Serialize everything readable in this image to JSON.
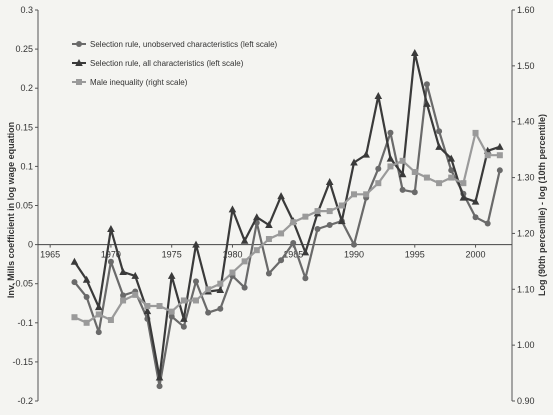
{
  "chart_data": {
    "type": "line",
    "ylabel": "Inv. Mills coefficient in log wage equation",
    "ylabel_right": "Log (90th percentile) - log (10th percentile)",
    "xticks": [
      "1965",
      "1970",
      "1975",
      "1980",
      "1985",
      "1990",
      "1995",
      "2000"
    ],
    "yticks_left": [
      "0.3",
      "0.25",
      "0.2",
      "0.15",
      "0.1",
      "0.05",
      "0",
      "-0.05",
      "-0.1",
      "-0.15",
      "-0.2"
    ],
    "yticks_right": [
      "1.60",
      "1.50",
      "1.40",
      "1.30",
      "1.20",
      "1.10",
      "1.00",
      "0.90"
    ],
    "xlim": [
      1964,
      2003
    ],
    "ylim": [
      -0.2,
      0.3
    ],
    "ylim_right": [
      0.9,
      1.6
    ],
    "legend_position": "top-left",
    "series": [
      {
        "name": "Selection rule, unobserved characteristics (left scale)",
        "axis": "left",
        "marker": "circle",
        "color": "#6a6a6a",
        "x": [
          1967,
          1968,
          1969,
          1970,
          1971,
          1972,
          1973,
          1974,
          1975,
          1976,
          1977,
          1978,
          1979,
          1980,
          1981,
          1982,
          1983,
          1984,
          1985,
          1986,
          1987,
          1988,
          1989,
          1990,
          1991,
          1992,
          1993,
          1994,
          1995,
          1996,
          1997,
          1998,
          1999,
          2000,
          2001,
          2002
        ],
        "values": [
          -0.048,
          -0.067,
          -0.112,
          -0.022,
          -0.065,
          -0.06,
          -0.095,
          -0.181,
          -0.092,
          -0.105,
          -0.047,
          -0.087,
          -0.082,
          -0.04,
          -0.055,
          0.028,
          -0.037,
          -0.02,
          0.002,
          -0.043,
          0.02,
          0.025,
          0.03,
          0.0,
          0.06,
          0.097,
          0.143,
          0.07,
          0.067,
          0.205,
          0.145,
          0.095,
          0.065,
          0.035,
          0.027,
          0.095
        ]
      },
      {
        "name": "Selection rule, all characteristics (left scale)",
        "axis": "left",
        "marker": "triangle",
        "color": "#3a3a3a",
        "x": [
          1967,
          1968,
          1969,
          1970,
          1971,
          1972,
          1973,
          1974,
          1975,
          1976,
          1977,
          1978,
          1979,
          1980,
          1981,
          1982,
          1983,
          1984,
          1985,
          1986,
          1987,
          1988,
          1989,
          1990,
          1991,
          1992,
          1993,
          1994,
          1995,
          1996,
          1997,
          1998,
          1999,
          2000,
          2001,
          2002
        ],
        "values": [
          -0.022,
          -0.045,
          -0.08,
          0.02,
          -0.035,
          -0.04,
          -0.085,
          -0.17,
          -0.04,
          -0.095,
          0.0,
          -0.06,
          -0.058,
          0.045,
          0.005,
          0.035,
          0.025,
          0.062,
          0.03,
          -0.01,
          0.04,
          0.08,
          0.03,
          0.105,
          0.115,
          0.19,
          0.11,
          0.09,
          0.245,
          0.18,
          0.125,
          0.11,
          0.06,
          0.055,
          0.12,
          0.125
        ]
      },
      {
        "name": "Male inequality (right scale)",
        "axis": "right",
        "marker": "square",
        "color": "#9a9a9a",
        "x": [
          1967,
          1968,
          1969,
          1970,
          1971,
          1972,
          1973,
          1974,
          1975,
          1976,
          1977,
          1978,
          1979,
          1980,
          1981,
          1982,
          1983,
          1984,
          1985,
          1986,
          1987,
          1988,
          1989,
          1990,
          1991,
          1992,
          1993,
          1994,
          1995,
          1996,
          1997,
          1998,
          1999,
          2000,
          2001,
          2002
        ],
        "values": [
          1.05,
          1.04,
          1.055,
          1.045,
          1.08,
          1.09,
          1.07,
          1.07,
          1.06,
          1.08,
          1.08,
          1.1,
          1.11,
          1.13,
          1.15,
          1.17,
          1.19,
          1.2,
          1.22,
          1.23,
          1.24,
          1.24,
          1.25,
          1.27,
          1.27,
          1.29,
          1.32,
          1.33,
          1.31,
          1.3,
          1.29,
          1.3,
          1.29,
          1.38,
          1.34,
          1.34
        ]
      }
    ]
  }
}
